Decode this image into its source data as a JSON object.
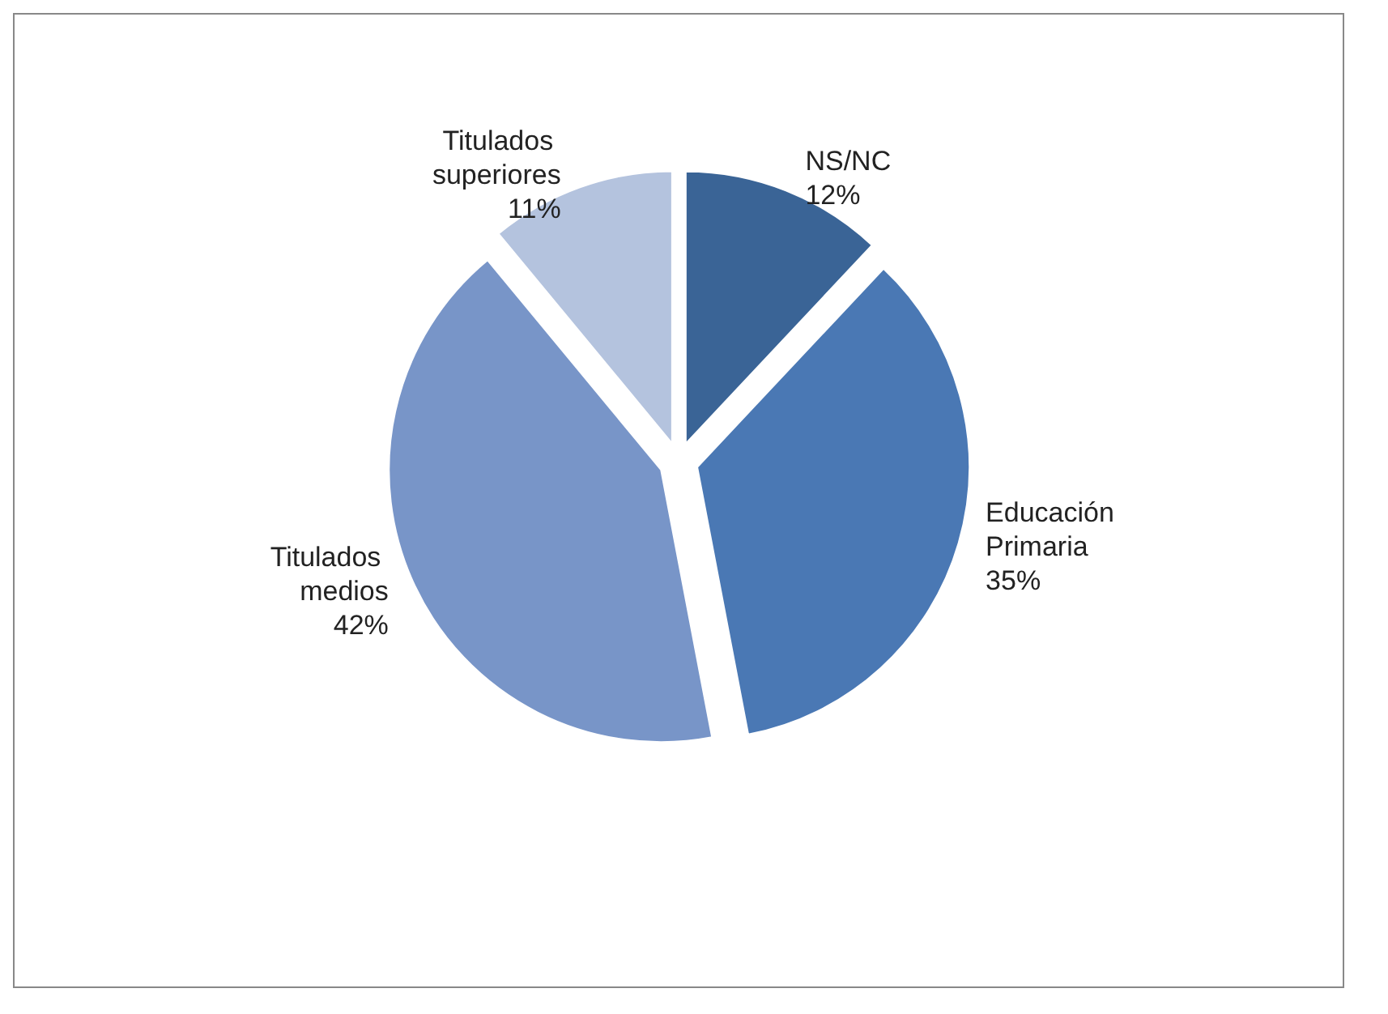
{
  "chart_data": {
    "type": "pie",
    "categories": [
      "NS/NC",
      "Educación Primaria",
      "Titulados medios",
      "Titulados superiores"
    ],
    "values": [
      12,
      35,
      42,
      11
    ],
    "colors": [
      "#3a6496",
      "#4a78b4",
      "#7895c8",
      "#b4c3de"
    ],
    "value_labels": [
      "12%",
      "35%",
      "42%",
      "11%"
    ],
    "legend": false
  }
}
